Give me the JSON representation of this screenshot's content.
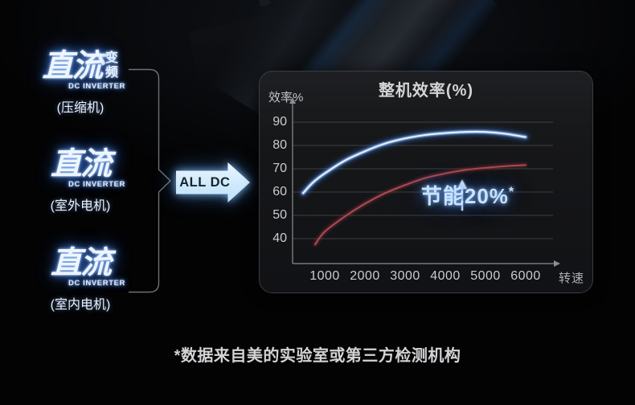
{
  "logos": [
    {
      "main": "直流",
      "extra": "变频",
      "sub": "DC INVERTER",
      "label": "(压缩机)"
    },
    {
      "main": "直流",
      "extra": "",
      "sub": "DC INVERTER",
      "label": "(室外电机)"
    },
    {
      "main": "直流",
      "extra": "",
      "sub": "DC INVERTER",
      "label": "(室内电机)"
    }
  ],
  "arrow": {
    "label": "ALL DC"
  },
  "chart_data": {
    "type": "line",
    "title": "整机效率(%)",
    "ylabel": "效率%",
    "xlabel": "转速",
    "x_ticks": [
      1000,
      2000,
      3000,
      4000,
      5000,
      6000
    ],
    "y_ticks": [
      40,
      50,
      60,
      70,
      80,
      90
    ],
    "xlim": [
      400,
      6500
    ],
    "ylim": [
      30,
      95
    ],
    "grid": true,
    "legend": "none",
    "series": [
      {
        "id": "blue-curve",
        "color": "#a9d2fb",
        "glow": "#2d6fd8",
        "core": "#e9f4ff",
        "points": [
          [
            460,
            59.5
          ],
          [
            700,
            64
          ],
          [
            1000,
            68
          ],
          [
            1500,
            73.5
          ],
          [
            2000,
            77.5
          ],
          [
            2500,
            80.8
          ],
          [
            3000,
            83
          ],
          [
            3500,
            84.5
          ],
          [
            4000,
            85.3
          ],
          [
            4500,
            85.8
          ],
          [
            5000,
            85.8
          ],
          [
            5500,
            85
          ],
          [
            6000,
            83.6
          ]
        ]
      },
      {
        "id": "red-curve",
        "color": "#b04a55",
        "glow": "#7c2e38",
        "core": "#b04a55",
        "points": [
          [
            760,
            37.5
          ],
          [
            1000,
            43
          ],
          [
            1500,
            49.5
          ],
          [
            2000,
            55
          ],
          [
            2500,
            59.5
          ],
          [
            3000,
            63
          ],
          [
            3500,
            66
          ],
          [
            4000,
            68
          ],
          [
            4500,
            69.5
          ],
          [
            5000,
            70.4
          ],
          [
            5500,
            71.1
          ],
          [
            6000,
            71.6
          ]
        ]
      }
    ],
    "annotation": {
      "text": "节能20%",
      "sup": "*",
      "arrow_x": 4420,
      "arrow_from": 52,
      "arrow_to": 62
    }
  },
  "footnote": "*数据来自美的实验室或第三方检测机构",
  "colors": {
    "accent_glow_blue": "#4586ea",
    "arrow_fill": "#cfe9fc",
    "panel_bg": "#161719",
    "grid_line": "#3d3f43",
    "axis_line": "#8a8d91",
    "tick_text": "#caccd0"
  }
}
